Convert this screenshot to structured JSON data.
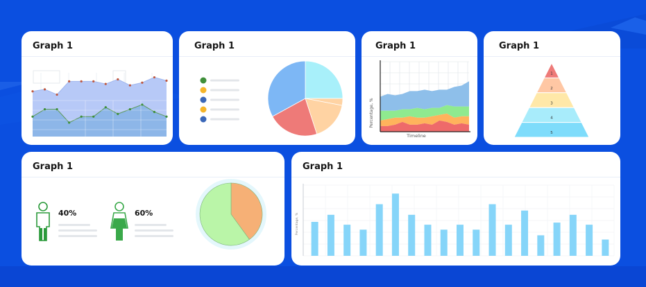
{
  "cards": {
    "c1": {
      "title": "Graph 1"
    },
    "c2": {
      "title": "Graph 1"
    },
    "c3": {
      "title": "Graph 1"
    },
    "c4": {
      "title": "Graph 1"
    },
    "c5": {
      "title": "Graph 1"
    },
    "c6": {
      "title": "Graph 1"
    }
  },
  "colors": {
    "background": "#0b4fe0",
    "card": "#ffffff",
    "area_light": "#b7c9f7",
    "area_dark": "#8db6e8",
    "pie_blue": "#7db7f5",
    "pie_cyan": "#a8f0fa",
    "pie_peach": "#ffd3a3",
    "pie_red": "#ee7a78",
    "legend_green": "#3f8f3a",
    "legend_amber": "#f5b52a",
    "legend_blue": "#3a67b8",
    "bar_cyan": "#86d5f9",
    "male_green": "#2a9a3a",
    "female_green": "#3aa94a",
    "donut_orange": "#f6b076",
    "donut_green": "#baf5a8",
    "donut_ring": "#e4f7fc"
  },
  "chart_data": [
    {
      "id": "area-line",
      "type": "area",
      "x": [
        0,
        1,
        2,
        3,
        4,
        5,
        6,
        7,
        8,
        9,
        10,
        11
      ],
      "series": [
        {
          "values": [
            68,
            71,
            63,
            83,
            83,
            83,
            79,
            86,
            77,
            81,
            89,
            84
          ]
        },
        {
          "values": [
            30,
            41,
            41,
            21,
            30,
            30,
            44,
            34,
            41,
            48,
            37,
            30
          ]
        }
      ],
      "ylim": [
        0,
        100
      ]
    },
    {
      "id": "pie-legend",
      "type": "pie",
      "values": [
        25,
        3,
        17,
        22,
        33
      ],
      "colors": [
        "#a8f0fa",
        "#ffd3a3",
        "#ffd3a3",
        "#ee7a78",
        "#7db7f5"
      ],
      "legend_colors": [
        "#3f8f3a",
        "#f5b52a",
        "#3a67b8",
        "#f5b52a",
        "#3a67b8"
      ]
    },
    {
      "id": "stacked-area",
      "type": "area",
      "xlabel": "Timeline",
      "ylabel": "Percentage, %",
      "x": [
        0,
        1,
        2,
        3,
        4,
        5,
        6,
        7,
        8,
        9,
        10,
        11,
        12
      ],
      "series": [
        {
          "values": [
            8,
            8,
            10,
            14,
            10,
            10,
            12,
            10,
            16,
            14,
            10,
            12,
            10
          ]
        },
        {
          "values": [
            8,
            10,
            10,
            6,
            12,
            10,
            8,
            12,
            8,
            12,
            10,
            10,
            12
          ]
        },
        {
          "values": [
            14,
            12,
            10,
            12,
            10,
            14,
            12,
            12,
            10,
            12,
            16,
            14,
            14
          ]
        },
        {
          "values": [
            20,
            24,
            22,
            22,
            26,
            24,
            28,
            24,
            26,
            22,
            28,
            30,
            36
          ]
        }
      ],
      "ylim": [
        0,
        100
      ]
    },
    {
      "id": "pyramid",
      "type": "bar",
      "categories": [
        "1",
        "2",
        "3",
        "4",
        "5"
      ],
      "colors": [
        "#ee7a78",
        "#ffc7a4",
        "#ffe8a8",
        "#a8ecfb",
        "#7edcfb"
      ]
    },
    {
      "id": "people-donut",
      "type": "pie",
      "values": [
        40,
        60
      ],
      "labels": [
        "40%",
        "60%"
      ],
      "colors": [
        "#f6b076",
        "#baf5a8"
      ]
    },
    {
      "id": "bars",
      "type": "bar",
      "ylabel": "Percentage, %",
      "values": [
        48,
        58,
        44,
        37,
        73,
        88,
        58,
        44,
        37,
        44,
        37,
        73,
        44,
        64,
        29,
        47,
        58,
        44,
        23
      ],
      "ylim": [
        0,
        100
      ]
    }
  ]
}
